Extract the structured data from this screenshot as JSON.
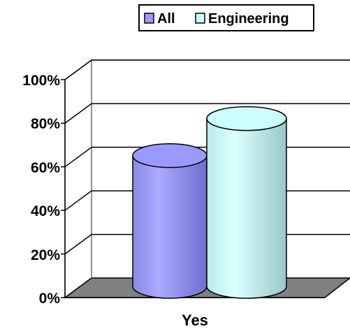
{
  "chart_data": {
    "type": "bar",
    "style": "3d-cylinder",
    "categories": [
      "Yes"
    ],
    "series": [
      {
        "name": "All",
        "values": [
          0.6
        ],
        "color": "#9999ff"
      },
      {
        "name": "Engineering",
        "values": [
          0.77
        ],
        "color": "#ccffff"
      }
    ],
    "ylim": [
      0,
      1
    ],
    "y_ticks": [
      "0%",
      "20%",
      "40%",
      "60%",
      "80%",
      "100%"
    ],
    "grid": true,
    "legend": "top-right",
    "floor_color": "#808080"
  }
}
